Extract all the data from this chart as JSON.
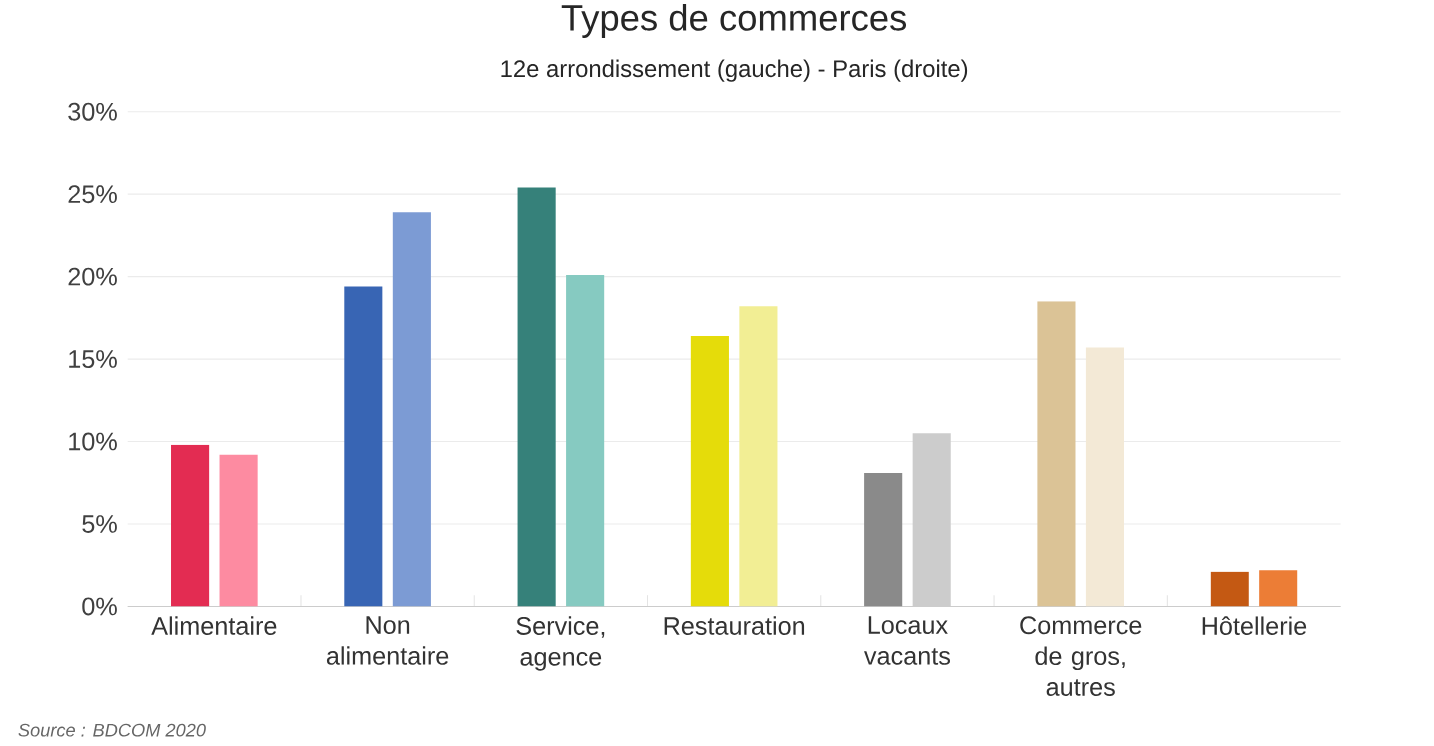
{
  "chart_data": {
    "type": "bar",
    "title": "Types de commerces",
    "subtitle": "12e arrondissement (gauche)  -  Paris (droite)",
    "categories": [
      "Alimentaire",
      "Non alimentaire",
      "Service, agence",
      "Restauration",
      "Locaux vacants",
      "Commerce de gros, autres",
      "Hôtellerie"
    ],
    "series": [
      {
        "colors": [
          "#e32c52",
          "#3865b4",
          "#36817a",
          "#e5dc0a",
          "#8a8a8a",
          "#dbc396",
          "#c45913"
        ],
        "values": [
          9.8,
          19.4,
          25.4,
          16.4,
          8.1,
          18.5,
          2.1
        ]
      },
      {
        "colors": [
          "#fd8ba1",
          "#7c9bd4",
          "#86cac1",
          "#f2ee94",
          "#cccccc",
          "#f3e9d6",
          "#ec7d36"
        ],
        "values": [
          9.2,
          23.9,
          20.1,
          18.2,
          10.5,
          15.7,
          2.2
        ]
      }
    ],
    "ylim": [
      0,
      30
    ],
    "yticks": [
      {
        "value": 0,
        "label": "0%"
      },
      {
        "value": 5,
        "label": "5%"
      },
      {
        "value": 10,
        "label": "10%"
      },
      {
        "value": 15,
        "label": "15%"
      },
      {
        "value": 20,
        "label": "20%"
      },
      {
        "value": 25,
        "label": "25%"
      },
      {
        "value": 30,
        "label": "30%"
      }
    ],
    "grid": "y",
    "annotations": [
      "Source : BDCOM 2020"
    ]
  }
}
